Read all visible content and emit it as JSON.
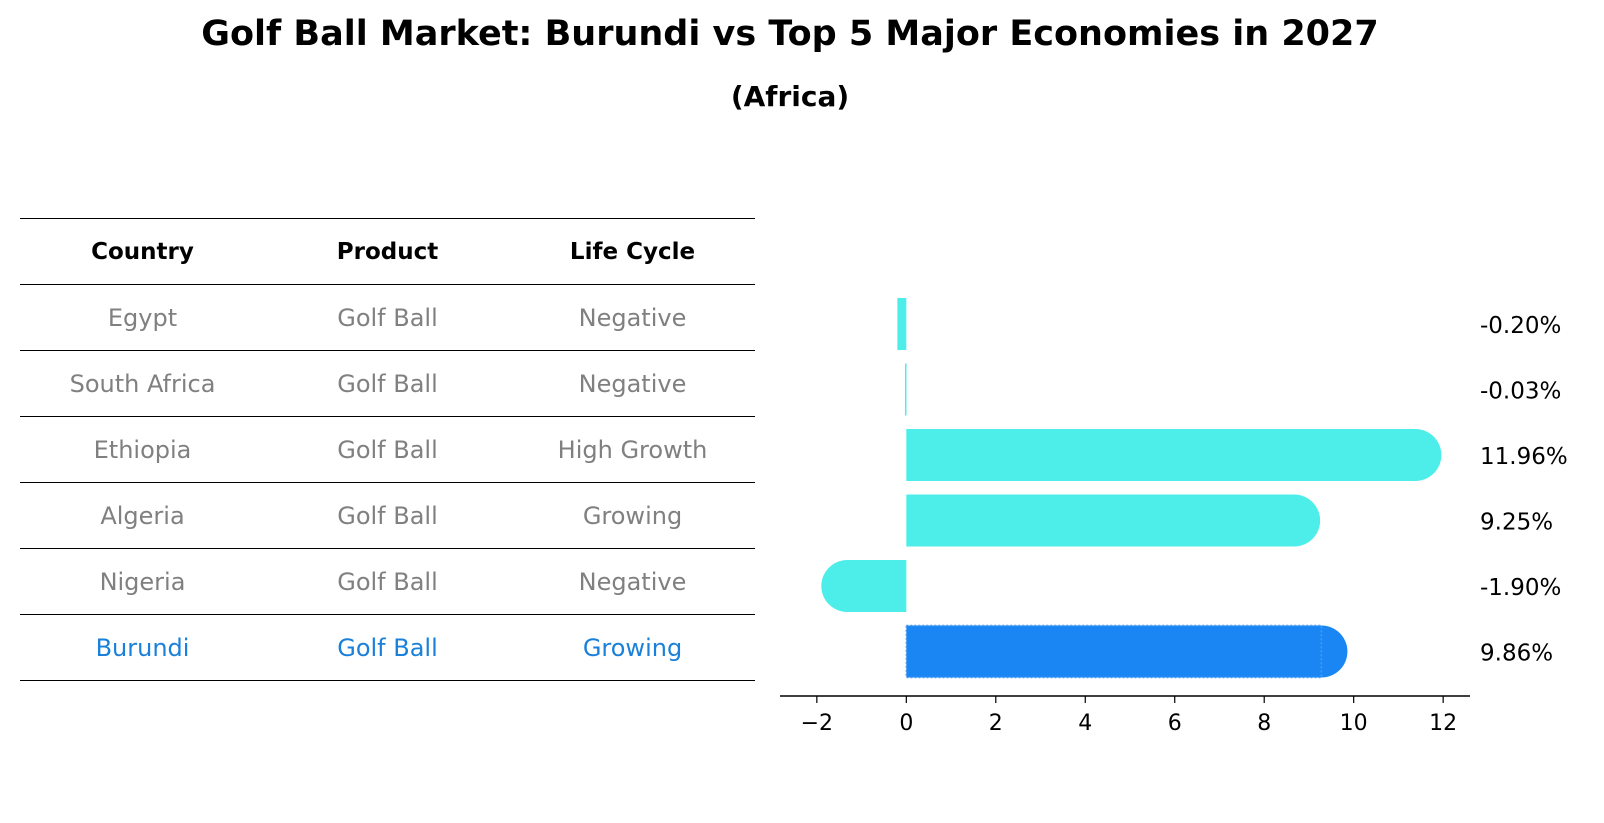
{
  "title": "Golf Ball Market: Burundi vs Top 5 Major Economies in 2027",
  "subtitle": "(Africa)",
  "table": {
    "headers": [
      "Country",
      "Product",
      "Life Cycle"
    ],
    "rows": [
      {
        "country": "Egypt",
        "product": "Golf Ball",
        "life_cycle": "Negative"
      },
      {
        "country": "South Africa",
        "product": "Golf Ball",
        "life_cycle": "Negative"
      },
      {
        "country": "Ethiopia",
        "product": "Golf Ball",
        "life_cycle": "High Growth"
      },
      {
        "country": "Algeria",
        "product": "Golf Ball",
        "life_cycle": "Growing"
      },
      {
        "country": "Nigeria",
        "product": "Golf Ball",
        "life_cycle": "Negative"
      },
      {
        "country": "Burundi",
        "product": "Golf Ball",
        "life_cycle": "Growing"
      }
    ]
  },
  "colors": {
    "bar": "#4deeea",
    "highlight_bar": "#1a86f4",
    "highlight_text": "#1a80d9",
    "muted_text": "#808080"
  },
  "chart_data": {
    "type": "bar",
    "orientation": "horizontal",
    "categories": [
      "Egypt",
      "South Africa",
      "Ethiopia",
      "Algeria",
      "Nigeria",
      "Burundi"
    ],
    "values": [
      -0.2,
      -0.03,
      11.96,
      9.25,
      -1.9,
      9.86
    ],
    "value_labels": [
      "-0.20%",
      "-0.03%",
      "11.96%",
      "9.25%",
      "-1.90%",
      "9.86%"
    ],
    "highlight": "Burundi",
    "xlim": [
      -2.6,
      12.6
    ],
    "xticks": [
      -2,
      0,
      2,
      4,
      6,
      8,
      10,
      12
    ],
    "xtick_labels": [
      "−2",
      "0",
      "2",
      "4",
      "6",
      "8",
      "10",
      "12"
    ],
    "xlabel": "",
    "ylabel": ""
  }
}
